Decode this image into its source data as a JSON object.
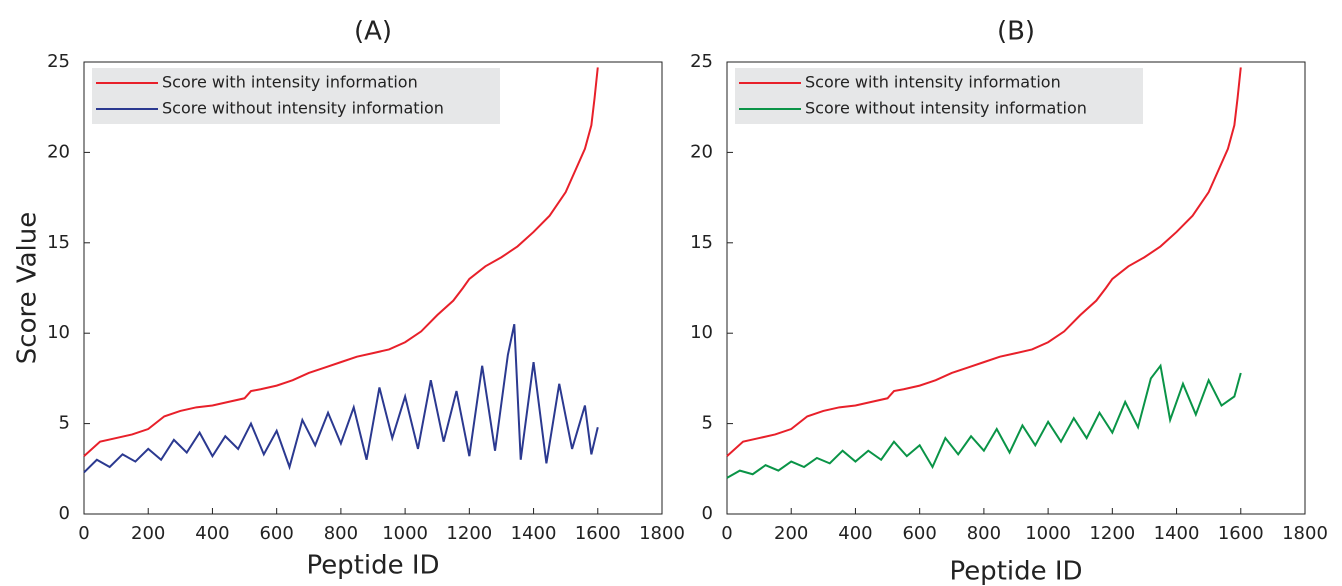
{
  "chart_data": [
    {
      "type": "line",
      "title": "(A)",
      "xlabel": "Peptide ID",
      "ylabel": "Score Value",
      "xlim": [
        0,
        1800
      ],
      "ylim": [
        0,
        25
      ],
      "xticks": [
        0,
        200,
        400,
        600,
        800,
        1000,
        1200,
        1400,
        1600,
        1800
      ],
      "yticks": [
        0,
        5,
        10,
        15,
        20,
        25
      ],
      "legend": "upper left",
      "series": [
        {
          "name": "Score with intensity information",
          "color": "#e8202a",
          "x": [
            0,
            50,
            100,
            150,
            200,
            250,
            300,
            350,
            400,
            450,
            500,
            520,
            550,
            600,
            650,
            700,
            750,
            800,
            850,
            900,
            950,
            1000,
            1050,
            1100,
            1150,
            1180,
            1200,
            1250,
            1300,
            1350,
            1400,
            1450,
            1500,
            1530,
            1560,
            1580,
            1590,
            1600
          ],
          "values": [
            3.2,
            4.0,
            4.2,
            4.4,
            4.7,
            5.4,
            5.7,
            5.9,
            6.0,
            6.2,
            6.4,
            6.8,
            6.9,
            7.1,
            7.4,
            7.8,
            8.1,
            8.4,
            8.7,
            8.9,
            9.1,
            9.5,
            10.1,
            11.0,
            11.8,
            12.5,
            13.0,
            13.7,
            14.2,
            14.8,
            15.6,
            16.5,
            17.8,
            19.0,
            20.2,
            21.5,
            23.0,
            24.7
          ]
        },
        {
          "name": "Score without intensity information",
          "color": "#2b3990",
          "x": [
            0,
            40,
            80,
            120,
            160,
            200,
            240,
            280,
            320,
            360,
            400,
            440,
            480,
            520,
            560,
            600,
            640,
            680,
            720,
            760,
            800,
            840,
            880,
            920,
            960,
            1000,
            1040,
            1080,
            1120,
            1160,
            1200,
            1240,
            1280,
            1320,
            1340,
            1360,
            1400,
            1440,
            1480,
            1520,
            1560,
            1580,
            1600
          ],
          "values": [
            2.3,
            3.0,
            2.6,
            3.3,
            2.9,
            3.6,
            3.0,
            4.1,
            3.4,
            4.5,
            3.2,
            4.3,
            3.6,
            5.0,
            3.3,
            4.6,
            2.6,
            5.2,
            3.8,
            5.6,
            3.9,
            5.9,
            3.0,
            7.0,
            4.2,
            6.5,
            3.6,
            7.4,
            4.0,
            6.8,
            3.2,
            8.2,
            3.5,
            8.8,
            10.5,
            3.0,
            8.4,
            2.8,
            7.2,
            3.6,
            6.0,
            3.3,
            4.8
          ]
        }
      ]
    },
    {
      "type": "line",
      "title": "(B)",
      "xlabel": "Peptide ID",
      "xlim": [
        0,
        1800
      ],
      "ylim": [
        0,
        25
      ],
      "xticks": [
        0,
        200,
        400,
        600,
        800,
        1000,
        1200,
        1400,
        1600,
        1800
      ],
      "yticks": [
        0,
        5,
        10,
        15,
        20,
        25
      ],
      "legend": "upper left",
      "series": [
        {
          "name": "Score with intensity information",
          "color": "#e8202a",
          "x": [
            0,
            50,
            100,
            150,
            200,
            250,
            300,
            350,
            400,
            450,
            500,
            520,
            550,
            600,
            650,
            700,
            750,
            800,
            850,
            900,
            950,
            1000,
            1050,
            1100,
            1150,
            1180,
            1200,
            1250,
            1300,
            1350,
            1400,
            1450,
            1500,
            1530,
            1560,
            1580,
            1590,
            1600
          ],
          "values": [
            3.2,
            4.0,
            4.2,
            4.4,
            4.7,
            5.4,
            5.7,
            5.9,
            6.0,
            6.2,
            6.4,
            6.8,
            6.9,
            7.1,
            7.4,
            7.8,
            8.1,
            8.4,
            8.7,
            8.9,
            9.1,
            9.5,
            10.1,
            11.0,
            11.8,
            12.5,
            13.0,
            13.7,
            14.2,
            14.8,
            15.6,
            16.5,
            17.8,
            19.0,
            20.2,
            21.5,
            23.0,
            24.7
          ]
        },
        {
          "name": "Score without intensity information",
          "color": "#0a9447",
          "x": [
            0,
            40,
            80,
            120,
            160,
            200,
            240,
            280,
            320,
            360,
            400,
            440,
            480,
            520,
            560,
            600,
            640,
            680,
            720,
            760,
            800,
            840,
            880,
            920,
            960,
            1000,
            1040,
            1080,
            1120,
            1160,
            1200,
            1240,
            1280,
            1320,
            1350,
            1380,
            1420,
            1460,
            1500,
            1540,
            1580,
            1600
          ],
          "values": [
            2.0,
            2.4,
            2.2,
            2.7,
            2.4,
            2.9,
            2.6,
            3.1,
            2.8,
            3.5,
            2.9,
            3.5,
            3.0,
            4.0,
            3.2,
            3.8,
            2.6,
            4.2,
            3.3,
            4.3,
            3.5,
            4.7,
            3.4,
            4.9,
            3.8,
            5.1,
            4.0,
            5.3,
            4.2,
            5.6,
            4.5,
            6.2,
            4.8,
            7.5,
            8.2,
            5.2,
            7.2,
            5.5,
            7.4,
            6.0,
            6.5,
            7.8
          ]
        }
      ]
    }
  ]
}
